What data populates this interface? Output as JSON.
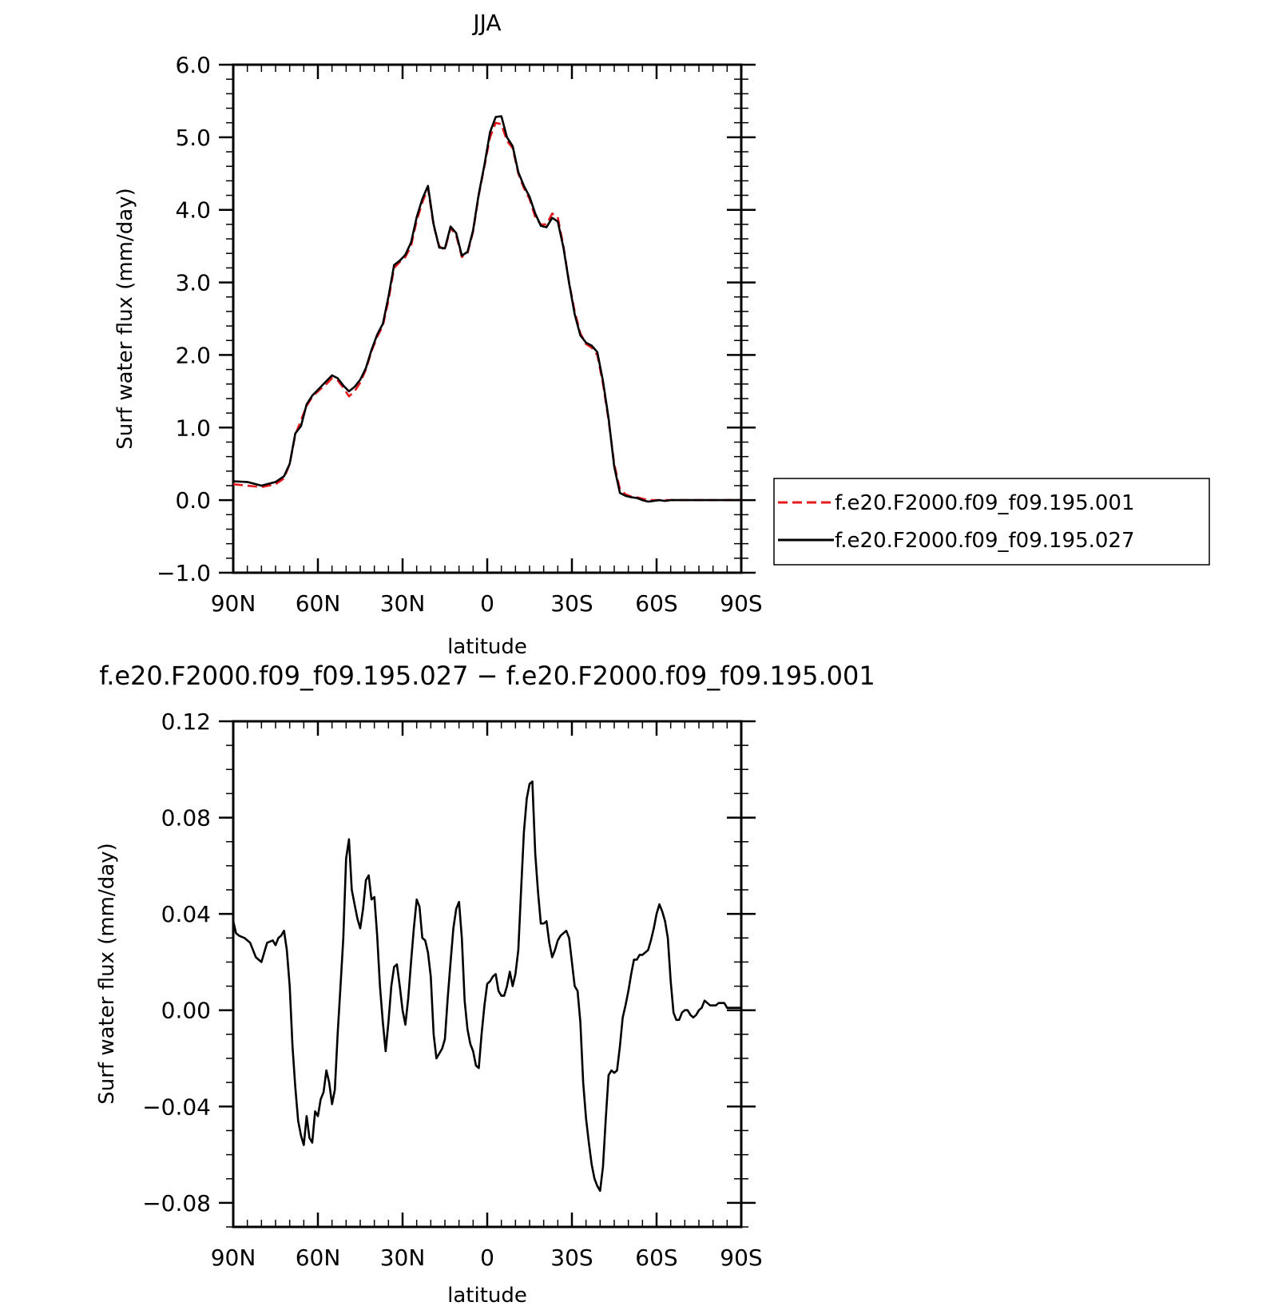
{
  "chart_data": [
    {
      "type": "line",
      "title": "JJA",
      "xlabel": "latitude",
      "ylabel": "Surf water flux (mm/day)",
      "xlim": [
        90,
        -90
      ],
      "ylim": [
        -1.0,
        6.0
      ],
      "x_ticks": [
        90,
        60,
        30,
        0,
        -30,
        -60,
        -90
      ],
      "x_tick_labels": [
        "90N",
        "60N",
        "30N",
        "0",
        "30S",
        "60S",
        "90S"
      ],
      "y_ticks": [
        -1.0,
        0.0,
        1.0,
        2.0,
        3.0,
        4.0,
        5.0,
        6.0
      ],
      "y_tick_labels": [
        "−1.0",
        "0.0",
        "1.0",
        "2.0",
        "3.0",
        "4.0",
        "5.0",
        "6.0"
      ],
      "grid": false,
      "legend": "right",
      "series": [
        {
          "name": "f.e20.F2000.f09_f09.195.001",
          "color": "#e41a1c",
          "dash": "dashed",
          "x": [
            90,
            85,
            80,
            75,
            72,
            70,
            68,
            66,
            64,
            62,
            60,
            57,
            55,
            53,
            51,
            49,
            47,
            45,
            43,
            41,
            39,
            37,
            35,
            33,
            31,
            29,
            27,
            25,
            23,
            21,
            19,
            17,
            15,
            13,
            11,
            9,
            7,
            5,
            3,
            1,
            -1,
            -3,
            -5,
            -7,
            -9,
            -11,
            -13,
            -15,
            -17,
            -19,
            -21,
            -23,
            -25,
            -27,
            -29,
            -31,
            -33,
            -35,
            -37,
            -39,
            -41,
            -43,
            -45,
            -47,
            -49,
            -51,
            -53,
            -55,
            -57,
            -59,
            -61,
            -63,
            -65,
            -67,
            -69,
            -71,
            -73,
            -76,
            -80,
            -84,
            -87,
            -90
          ],
          "y": [
            0.22,
            0.2,
            0.18,
            0.22,
            0.3,
            0.5,
            0.9,
            1.1,
            1.3,
            1.42,
            1.5,
            1.6,
            1.68,
            1.65,
            1.55,
            1.43,
            1.5,
            1.62,
            1.8,
            2.05,
            2.25,
            2.4,
            2.75,
            3.2,
            3.28,
            3.35,
            3.5,
            3.85,
            4.1,
            4.3,
            3.78,
            3.5,
            3.45,
            3.75,
            3.65,
            3.35,
            3.4,
            3.7,
            4.2,
            4.6,
            5.0,
            5.2,
            5.18,
            4.95,
            4.85,
            4.5,
            4.3,
            4.15,
            3.9,
            3.8,
            3.8,
            3.95,
            3.9,
            3.5,
            3.0,
            2.6,
            2.3,
            2.15,
            2.1,
            2.0,
            1.6,
            1.1,
            0.5,
            0.15,
            0.08,
            0.05,
            0.04,
            0.02,
            0.0,
            0.0,
            0.0,
            0.0,
            0.0,
            0.0,
            0.0,
            0.0,
            0.0,
            0.0,
            0.0,
            0.0,
            0.0,
            0.0
          ]
        },
        {
          "name": "f.e20.F2000.f09_f09.195.027",
          "color": "#000000",
          "dash": "solid",
          "x": [
            90,
            85,
            80,
            75,
            72,
            70,
            68,
            66,
            64,
            62,
            60,
            57,
            55,
            53,
            51,
            49,
            47,
            45,
            43,
            41,
            39,
            37,
            35,
            33,
            31,
            29,
            27,
            25,
            23,
            21,
            19,
            17,
            15,
            13,
            11,
            9,
            7,
            5,
            3,
            1,
            -1,
            -3,
            -5,
            -7,
            -9,
            -11,
            -13,
            -15,
            -17,
            -19,
            -21,
            -23,
            -25,
            -27,
            -29,
            -31,
            -33,
            -35,
            -37,
            -39,
            -41,
            -43,
            -45,
            -47,
            -49,
            -51,
            -53,
            -55,
            -57,
            -59,
            -61,
            -63,
            -65,
            -67,
            -69,
            -71,
            -73,
            -76,
            -80,
            -84,
            -87,
            -90
          ],
          "y": [
            0.26,
            0.25,
            0.2,
            0.25,
            0.33,
            0.5,
            0.92,
            1.02,
            1.32,
            1.44,
            1.52,
            1.64,
            1.72,
            1.68,
            1.58,
            1.5,
            1.56,
            1.66,
            1.82,
            2.07,
            2.28,
            2.43,
            2.8,
            3.24,
            3.3,
            3.38,
            3.55,
            3.9,
            4.15,
            4.33,
            3.8,
            3.48,
            3.47,
            3.77,
            3.68,
            3.37,
            3.42,
            3.72,
            4.22,
            4.62,
            5.07,
            5.28,
            5.29,
            5.0,
            4.88,
            4.52,
            4.33,
            4.18,
            3.95,
            3.78,
            3.76,
            3.89,
            3.84,
            3.48,
            2.99,
            2.56,
            2.27,
            2.17,
            2.13,
            2.04,
            1.64,
            1.13,
            0.46,
            0.1,
            0.06,
            0.04,
            0.03,
            0.0,
            -0.02,
            -0.01,
            0.0,
            -0.01,
            0.0,
            0.0,
            0.0,
            0.0,
            0.0,
            0.0,
            0.0,
            0.0,
            0.0,
            0.0
          ]
        }
      ]
    },
    {
      "type": "line",
      "title": "f.e20.F2000.f09_f09.195.027 − f.e20.F2000.f09_f09.195.001",
      "xlabel": "latitude",
      "ylabel": "Surf water flux (mm/day)",
      "xlim": [
        90,
        -90
      ],
      "ylim": [
        -0.09,
        0.12
      ],
      "x_ticks": [
        90,
        60,
        30,
        0,
        -30,
        -60,
        -90
      ],
      "x_tick_labels": [
        "90N",
        "60N",
        "30N",
        "0",
        "30S",
        "60S",
        "90S"
      ],
      "y_ticks": [
        -0.08,
        -0.04,
        0.0,
        0.04,
        0.08,
        0.12
      ],
      "y_tick_labels": [
        "−0.08",
        "−0.04",
        "0.00",
        "0.04",
        "0.08",
        "0.12"
      ],
      "grid": false,
      "series": [
        {
          "color": "#000000",
          "dash": "solid",
          "x": [
            90,
            89,
            88,
            86,
            84,
            82,
            80,
            78,
            76,
            75,
            74,
            73,
            72,
            71,
            70,
            69,
            68,
            67,
            66,
            65,
            64,
            63,
            62,
            61,
            60,
            59,
            58,
            57,
            56,
            55,
            54,
            53,
            52,
            51,
            50,
            49,
            48,
            47,
            46,
            45,
            44,
            43,
            42,
            41,
            40,
            39,
            38,
            37,
            36,
            35,
            34,
            33,
            32,
            31,
            30,
            29,
            28,
            27,
            26,
            25,
            24,
            23,
            22,
            21,
            20,
            19,
            18,
            17,
            16,
            15,
            14,
            13,
            12,
            11,
            10,
            9,
            8,
            7,
            6,
            5,
            4,
            3,
            2,
            1,
            0,
            -1,
            -2,
            -3,
            -4,
            -5,
            -6,
            -7,
            -8,
            -9,
            -10,
            -11,
            -12,
            -13,
            -14,
            -15,
            -16,
            -17,
            -18,
            -19,
            -20,
            -21,
            -22,
            -23,
            -24,
            -25,
            -26,
            -27,
            -28,
            -29,
            -30,
            -31,
            -32,
            -33,
            -34,
            -35,
            -36,
            -37,
            -38,
            -39,
            -40,
            -41,
            -42,
            -43,
            -44,
            -45,
            -46,
            -47,
            -48,
            -49,
            -50,
            -51,
            -52,
            -53,
            -54,
            -55,
            -56,
            -57,
            -58,
            -59,
            -60,
            -61,
            -62,
            -63,
            -64,
            -65,
            -66,
            -67,
            -68,
            -69,
            -70,
            -71,
            -72,
            -73,
            -74,
            -75,
            -76,
            -77,
            -78,
            -79,
            -80,
            -81,
            -82,
            -83,
            -84,
            -85,
            -86,
            -87,
            -88,
            -89,
            -90
          ],
          "y": [
            0.037,
            0.032,
            0.031,
            0.03,
            0.028,
            0.022,
            0.02,
            0.028,
            0.029,
            0.027,
            0.03,
            0.031,
            0.033,
            0.025,
            0.01,
            -0.015,
            -0.032,
            -0.046,
            -0.052,
            -0.056,
            -0.044,
            -0.053,
            -0.055,
            -0.042,
            -0.044,
            -0.037,
            -0.034,
            -0.025,
            -0.03,
            -0.039,
            -0.033,
            -0.01,
            0.01,
            0.03,
            0.063,
            0.071,
            0.05,
            0.044,
            0.038,
            0.034,
            0.042,
            0.054,
            0.056,
            0.046,
            0.047,
            0.031,
            0.01,
            -0.005,
            -0.017,
            -0.005,
            0.01,
            0.018,
            0.019,
            0.01,
            0.0,
            -0.006,
            0.005,
            0.02,
            0.034,
            0.046,
            0.043,
            0.03,
            0.029,
            0.024,
            0.014,
            -0.01,
            -0.02,
            -0.018,
            -0.016,
            -0.012,
            0.005,
            0.02,
            0.034,
            0.042,
            0.045,
            0.03,
            0.004,
            -0.008,
            -0.014,
            -0.017,
            -0.023,
            -0.024,
            -0.01,
            0.002,
            0.011,
            0.012,
            0.014,
            0.015,
            0.008,
            0.006,
            0.006,
            0.01,
            0.016,
            0.01,
            0.015,
            0.025,
            0.05,
            0.074,
            0.088,
            0.094,
            0.095,
            0.065,
            0.049,
            0.036,
            0.036,
            0.037,
            0.028,
            0.022,
            0.025,
            0.029,
            0.031,
            0.032,
            0.033,
            0.03,
            0.02,
            0.01,
            0.008,
            -0.005,
            -0.03,
            -0.045,
            -0.055,
            -0.064,
            -0.07,
            -0.073,
            -0.075,
            -0.065,
            -0.045,
            -0.027,
            -0.025,
            -0.026,
            -0.025,
            -0.015,
            -0.003,
            0.002,
            0.008,
            0.015,
            0.021,
            0.021,
            0.023,
            0.023,
            0.024,
            0.025,
            0.029,
            0.034,
            0.04,
            0.044,
            0.041,
            0.037,
            0.03,
            0.012,
            -0.001,
            -0.004,
            -0.004,
            -0.001,
            0.0,
            0.0,
            -0.002,
            -0.003,
            -0.002,
            0.0,
            0.001,
            0.004,
            0.003,
            0.002,
            0.002,
            0.002,
            0.003,
            0.003,
            0.003,
            0.001,
            0.001,
            0.001,
            0.001,
            0.001,
            0.001
          ]
        }
      ]
    }
  ]
}
